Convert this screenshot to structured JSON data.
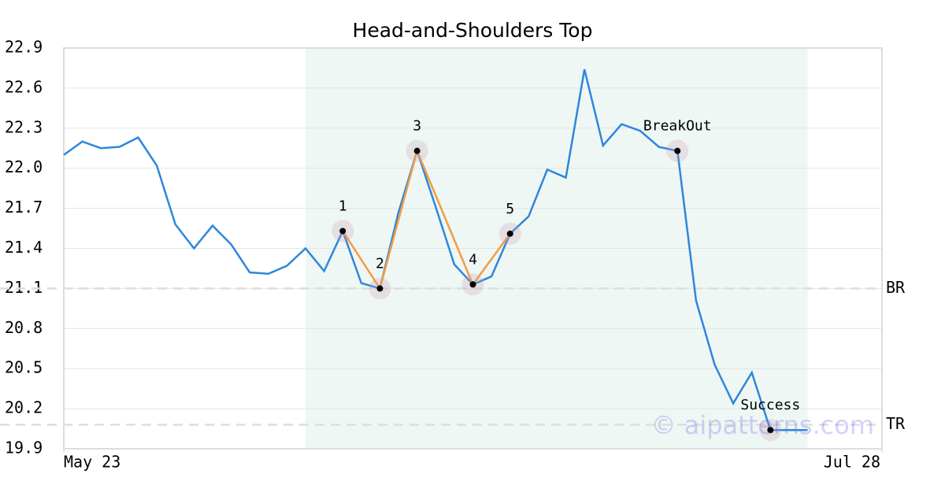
{
  "chart_data": {
    "type": "line",
    "title": "Head-and-Shoulders Top",
    "x": [
      0,
      1,
      2,
      3,
      4,
      5,
      6,
      7,
      8,
      9,
      10,
      11,
      12,
      13,
      14,
      15,
      16,
      17,
      18,
      19,
      20,
      21,
      22,
      23,
      24,
      25,
      26,
      27,
      28,
      29,
      30,
      31,
      32,
      33,
      34,
      35,
      36,
      37,
      38,
      39,
      40
    ],
    "values": [
      22.1,
      22.2,
      22.15,
      22.16,
      22.23,
      22.02,
      21.58,
      21.4,
      21.57,
      21.43,
      21.22,
      21.21,
      21.27,
      21.4,
      21.23,
      21.53,
      21.14,
      21.1,
      21.67,
      22.13,
      21.71,
      21.28,
      21.13,
      21.19,
      21.51,
      21.64,
      21.99,
      21.93,
      22.74,
      22.17,
      22.33,
      22.28,
      22.16,
      22.13,
      21.01,
      20.53,
      20.24,
      20.47,
      20.04,
      20.04,
      20.04
    ],
    "color": "#2e86de",
    "pattern_color": "#f39c42",
    "xlim": [
      0,
      44
    ],
    "xticks": [
      {
        "value": 0,
        "label": "May 23"
      },
      {
        "value": 44,
        "label": "Jul 28"
      }
    ],
    "ylim": [
      19.9,
      22.9
    ],
    "yticks": [
      19.9,
      20.2,
      20.5,
      20.8,
      21.1,
      21.4,
      21.7,
      {
        "value": 22,
        "label": "22.0"
      },
      22.3,
      22.6,
      22.9
    ],
    "grid": true,
    "shade_x": [
      13,
      40
    ],
    "annotations": [
      {
        "label": "1",
        "x": 15,
        "value": 21.53
      },
      {
        "label": "2",
        "x": 17,
        "value": 21.1
      },
      {
        "label": "3",
        "x": 19,
        "value": 22.13
      },
      {
        "label": "4",
        "x": 22,
        "value": 21.13
      },
      {
        "label": "5",
        "x": 24,
        "value": 21.51
      },
      {
        "label": "BreakOut",
        "x": 33,
        "value": 22.13
      },
      {
        "label": "Success",
        "x": 38,
        "value": 20.04
      }
    ],
    "pattern_points": 5,
    "levels": [
      {
        "label": "BR",
        "value": 21.1
      },
      {
        "label": "TR",
        "value": 20.08
      }
    ],
    "watermark": "© aipatterns.com"
  }
}
